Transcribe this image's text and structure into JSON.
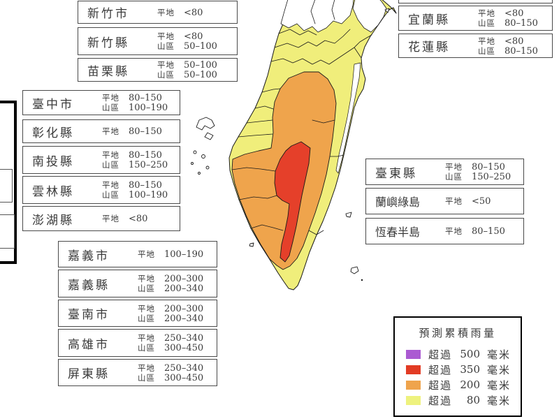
{
  "map": {
    "colors": {
      "yellow": "#f0ee7b",
      "orange": "#efa44c",
      "red": "#e5402a",
      "white": "#ffffff",
      "border": "#1a1a1a"
    }
  },
  "legend": {
    "title": "預測累積雨量",
    "rows": [
      {
        "color": "#ab5ad2",
        "prefix": "超過",
        "value": "500",
        "unit": "毫米"
      },
      {
        "color": "#e23b24",
        "prefix": "超過",
        "value": "350",
        "unit": "毫米"
      },
      {
        "color": "#efa44c",
        "prefix": "超過",
        "value": "200",
        "unit": "毫米"
      },
      {
        "color": "#eef27e",
        "prefix": "超過",
        "value": "80",
        "unit": "毫米"
      }
    ]
  },
  "regions": {
    "top_left": [
      {
        "name": "新竹市",
        "rows": [
          {
            "label": "平地",
            "value": "<80"
          }
        ]
      },
      {
        "name": "新竹縣",
        "rows": [
          {
            "label": "平地",
            "value": "<80"
          },
          {
            "label": "山區",
            "value": "50–100"
          }
        ]
      },
      {
        "name": "苗栗縣",
        "rows": [
          {
            "label": "平地",
            "value": "50–100"
          },
          {
            "label": "山區",
            "value": "50–100"
          }
        ]
      }
    ],
    "left": [
      {
        "name": "臺中市",
        "rows": [
          {
            "label": "平地",
            "value": "80–150"
          },
          {
            "label": "山區",
            "value": "100–190"
          }
        ]
      },
      {
        "name": "彰化縣",
        "rows": [
          {
            "label": "平地",
            "value": "80–150"
          }
        ]
      },
      {
        "name": "南投縣",
        "rows": [
          {
            "label": "平地",
            "value": "80–150"
          },
          {
            "label": "山區",
            "value": "150–250"
          }
        ]
      },
      {
        "name": "雲林縣",
        "rows": [
          {
            "label": "平地",
            "value": "80–150"
          },
          {
            "label": "山區",
            "value": "100–190"
          }
        ]
      },
      {
        "name": "澎湖縣",
        "rows": [
          {
            "label": "平地",
            "value": "<80"
          }
        ]
      }
    ],
    "bottom_middle": [
      {
        "name": "嘉義市",
        "rows": [
          {
            "label": "平地",
            "value": "100–190"
          }
        ]
      },
      {
        "name": "嘉義縣",
        "rows": [
          {
            "label": "平地",
            "value": "200–300"
          },
          {
            "label": "山區",
            "value": "200–340"
          }
        ]
      },
      {
        "name": "臺南市",
        "rows": [
          {
            "label": "平地",
            "value": "200–300"
          },
          {
            "label": "山區",
            "value": "200–340"
          }
        ]
      },
      {
        "name": "高雄市",
        "rows": [
          {
            "label": "平地",
            "value": "250–340"
          },
          {
            "label": "山區",
            "value": "300–450"
          }
        ]
      },
      {
        "name": "屏東縣",
        "rows": [
          {
            "label": "平地",
            "value": "250–340"
          },
          {
            "label": "山區",
            "value": "300–450"
          }
        ]
      }
    ],
    "top_right": [
      {
        "name": "宜蘭縣",
        "rows": [
          {
            "label": "平地",
            "value": "<80"
          },
          {
            "label": "山區",
            "value": "80–150"
          }
        ]
      },
      {
        "name": "花蓮縣",
        "rows": [
          {
            "label": "平地",
            "value": "<80"
          },
          {
            "label": "山區",
            "value": "80–150"
          }
        ]
      }
    ],
    "right": [
      {
        "name": "臺東縣",
        "rows": [
          {
            "label": "平地",
            "value": "80–150"
          },
          {
            "label": "山區",
            "value": "150–250"
          }
        ]
      },
      {
        "name": "蘭嶼綠島",
        "rows": [
          {
            "label": "平地",
            "value": "<50"
          }
        ]
      },
      {
        "name": "恆春半島",
        "rows": [
          {
            "label": "平地",
            "value": "80–150"
          }
        ]
      }
    ]
  }
}
